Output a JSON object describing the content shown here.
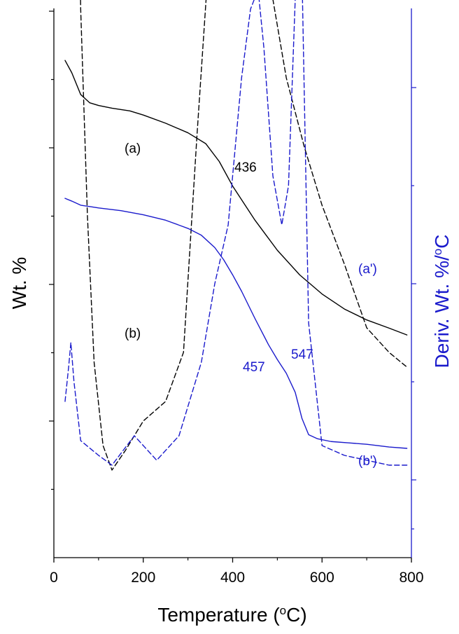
{
  "chart_data": {
    "type": "line",
    "xlabel": "Temperature",
    "xlabel_unit_open": "(",
    "xlabel_unit_sup": "o",
    "xlabel_unit_close": "C)",
    "ylabel_left": "Wt. %",
    "ylabel_right": "Deriv. Wt. %/",
    "ylabel_right_sup": "o",
    "ylabel_right_end": "C",
    "xlim": [
      0,
      800
    ],
    "x_ticks": [
      0,
      200,
      400,
      600,
      800
    ],
    "x_tick_labels": [
      "0",
      "200",
      "400",
      "600",
      "800"
    ],
    "left_axis_color": "#000000",
    "right_axis_color": "#1a1acc",
    "grid": false,
    "series": [
      {
        "name": "(a)",
        "axis": "left",
        "style": "solid",
        "color": "#000000",
        "x": [
          25,
          40,
          60,
          80,
          100,
          130,
          170,
          200,
          250,
          300,
          340,
          370,
          400,
          450,
          500,
          550,
          600,
          650,
          700,
          750,
          790
        ],
        "y": [
          96.4,
          95.5,
          93.9,
          93.3,
          93.1,
          92.9,
          92.7,
          92.4,
          91.8,
          91.1,
          90.3,
          89.0,
          87.2,
          84.7,
          82.5,
          80.7,
          79.3,
          78.2,
          77.4,
          76.8,
          76.3
        ]
      },
      {
        "name": "(a')",
        "axis": "right",
        "style": "dashed",
        "color": "#000000",
        "x": [
          25,
          32,
          38,
          45,
          52,
          60,
          75,
          90,
          110,
          130,
          160,
          200,
          250,
          290,
          320,
          345,
          360,
          380,
          400,
          436,
          460,
          490,
          520,
          560,
          600,
          650,
          700,
          750,
          790
        ],
        "y": [
          8.9,
          11.5,
          12.2,
          10.3,
          7.0,
          4.8,
          2.7,
          1.2,
          0.35,
          0.1,
          0.3,
          0.6,
          0.8,
          1.3,
          3.5,
          5.2,
          5.9,
          6.0,
          6.1,
          6.3,
          5.7,
          4.9,
          4.1,
          3.4,
          2.8,
          2.2,
          1.55,
          1.3,
          1.15
        ]
      },
      {
        "name": "(b)",
        "axis": "left",
        "style": "solid",
        "color": "#1a1acc",
        "x": [
          25,
          40,
          60,
          80,
          100,
          150,
          200,
          250,
          300,
          330,
          360,
          380,
          400,
          420,
          450,
          480,
          500,
          520,
          540,
          555,
          570,
          590,
          620,
          660,
          700,
          750,
          790
        ],
        "y": [
          86.3,
          86.1,
          85.8,
          85.7,
          85.6,
          85.4,
          85.1,
          84.7,
          84.1,
          83.6,
          82.7,
          81.8,
          80.7,
          79.5,
          77.5,
          75.6,
          74.5,
          73.5,
          72.1,
          70.2,
          69.0,
          68.7,
          68.5,
          68.4,
          68.3,
          68.1,
          68.0
        ]
      },
      {
        "name": "(b')",
        "axis": "right",
        "style": "dashed",
        "color": "#1a1acc",
        "x": [
          25,
          33,
          38,
          45,
          60,
          100,
          130,
          180,
          230,
          280,
          330,
          360,
          390,
          420,
          440,
          457,
          470,
          490,
          510,
          525,
          540,
          547,
          555,
          570,
          600,
          650,
          700,
          750,
          790
        ],
        "y": [
          0.8,
          1.15,
          1.4,
          1.0,
          0.4,
          0.25,
          0.15,
          0.45,
          0.2,
          0.45,
          1.2,
          2.0,
          2.6,
          4.1,
          4.8,
          5.0,
          4.4,
          3.1,
          2.6,
          3.0,
          4.9,
          6.0,
          5.2,
          1.6,
          0.35,
          0.25,
          0.2,
          0.15,
          0.15
        ]
      }
    ],
    "annotations": {
      "a_label": "(a)",
      "a_prime_label": "(a')",
      "b_label": "(b)",
      "b_prime_label": "(b')",
      "peak_436": "436",
      "peak_457": "457",
      "peak_547": "547"
    }
  }
}
